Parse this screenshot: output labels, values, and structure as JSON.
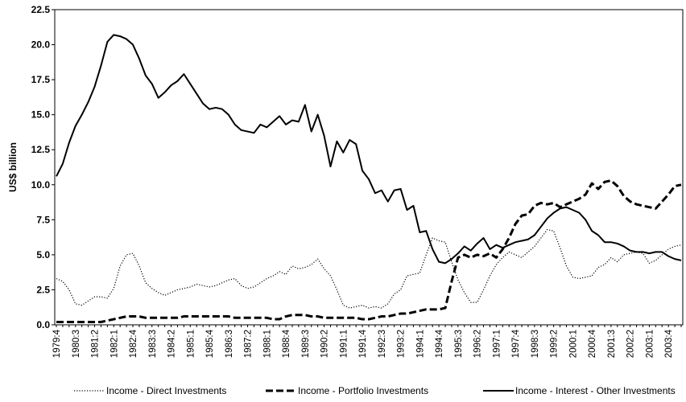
{
  "chart_data": {
    "type": "line",
    "y_label": "US$ billion",
    "categories": [
      "1979:4",
      null,
      null,
      "1980:3",
      null,
      null,
      "1981:2",
      null,
      null,
      "1982:1",
      null,
      null,
      "1982:4",
      null,
      null,
      "1983:3",
      null,
      null,
      "1984:2",
      null,
      null,
      "1985:1",
      null,
      null,
      "1985:4",
      null,
      null,
      "1986:3",
      null,
      null,
      "1987:2",
      null,
      null,
      "1988:1",
      null,
      null,
      "1988:4",
      null,
      null,
      "1989:3",
      null,
      null,
      "1990:2",
      null,
      null,
      "1991:1",
      null,
      null,
      "1991:4",
      null,
      null,
      "1992:3",
      null,
      null,
      "1993:2",
      null,
      null,
      "1994:1",
      null,
      null,
      "1994:4",
      null,
      null,
      "1995:3",
      null,
      null,
      "1996:2",
      null,
      null,
      "1997:1",
      null,
      null,
      "1997:4",
      null,
      null,
      "1998:3",
      null,
      null,
      "1999:2",
      null,
      null,
      "2000:1",
      null,
      null,
      "2000:4",
      null,
      null,
      "2001:3",
      null,
      null,
      "2002:2",
      null,
      null,
      "2003:1",
      null,
      null,
      "2003:4",
      null,
      null
    ],
    "series": [
      {
        "name": "Income - Direct Investments",
        "color": "#000000",
        "dash": "dotted",
        "values": [
          3.3,
          3.1,
          2.5,
          1.5,
          1.4,
          1.7,
          2.0,
          2.0,
          1.9,
          2.6,
          4.2,
          5.0,
          5.1,
          4.2,
          3.0,
          2.6,
          2.3,
          2.1,
          2.3,
          2.5,
          2.6,
          2.7,
          2.9,
          2.8,
          2.7,
          2.8,
          3.0,
          3.2,
          3.3,
          2.8,
          2.6,
          2.7,
          3.0,
          3.3,
          3.5,
          3.8,
          3.6,
          4.2,
          4.0,
          4.1,
          4.3,
          4.7,
          4.0,
          3.5,
          2.5,
          1.4,
          1.2,
          1.3,
          1.4,
          1.2,
          1.3,
          1.2,
          1.5,
          2.2,
          2.5,
          3.5,
          3.6,
          3.7,
          5.0,
          6.2,
          6.0,
          5.9,
          4.5,
          3.2,
          2.3,
          1.6,
          1.6,
          2.5,
          3.5,
          4.3,
          4.8,
          5.2,
          5.0,
          4.8,
          5.2,
          5.6,
          6.2,
          6.8,
          6.7,
          5.5,
          4.2,
          3.4,
          3.3,
          3.4,
          3.5,
          4.1,
          4.3,
          4.8,
          4.5,
          5.0,
          5.1,
          5.2,
          5.1,
          4.4,
          4.6,
          5.0,
          5.4,
          5.6,
          5.7
        ]
      },
      {
        "name": "Income - Portfolio Investments",
        "color": "#000000",
        "dash": "dashed",
        "values": [
          0.2,
          0.2,
          0.2,
          0.2,
          0.2,
          0.2,
          0.2,
          0.2,
          0.3,
          0.4,
          0.5,
          0.6,
          0.6,
          0.6,
          0.5,
          0.5,
          0.5,
          0.5,
          0.5,
          0.5,
          0.6,
          0.6,
          0.6,
          0.6,
          0.6,
          0.6,
          0.6,
          0.6,
          0.5,
          0.5,
          0.5,
          0.5,
          0.5,
          0.5,
          0.4,
          0.4,
          0.6,
          0.7,
          0.7,
          0.7,
          0.6,
          0.6,
          0.5,
          0.5,
          0.5,
          0.5,
          0.5,
          0.5,
          0.4,
          0.4,
          0.5,
          0.6,
          0.6,
          0.7,
          0.8,
          0.8,
          0.9,
          1.0,
          1.1,
          1.1,
          1.1,
          1.2,
          3.1,
          4.8,
          5.0,
          4.8,
          5.0,
          4.9,
          5.1,
          4.8,
          5.4,
          6.2,
          7.2,
          7.8,
          7.9,
          8.5,
          8.7,
          8.6,
          8.7,
          8.4,
          8.6,
          8.8,
          9.0,
          9.3,
          10.1,
          9.7,
          10.2,
          10.3,
          9.9,
          9.2,
          8.8,
          8.6,
          8.5,
          8.4,
          8.3,
          8.8,
          9.3,
          9.9,
          10.0
        ]
      },
      {
        "name": "Income - Interest - Other Investments",
        "color": "#000000",
        "dash": "solid",
        "values": [
          10.6,
          11.5,
          13.0,
          14.2,
          15.0,
          15.9,
          17.0,
          18.5,
          20.2,
          20.7,
          20.6,
          20.4,
          20.0,
          19.0,
          17.8,
          17.2,
          16.2,
          16.6,
          17.1,
          17.4,
          17.9,
          17.2,
          16.5,
          15.8,
          15.4,
          15.5,
          15.4,
          15.0,
          14.3,
          13.9,
          13.8,
          13.7,
          14.3,
          14.1,
          14.5,
          14.9,
          14.3,
          14.6,
          14.5,
          15.7,
          13.8,
          15.0,
          13.5,
          11.3,
          13.1,
          12.3,
          13.2,
          12.9,
          11.0,
          10.4,
          9.4,
          9.6,
          8.8,
          9.6,
          9.7,
          8.2,
          8.5,
          6.6,
          6.7,
          5.4,
          4.5,
          4.4,
          4.7,
          5.1,
          5.6,
          5.3,
          5.8,
          6.2,
          5.4,
          5.7,
          5.5,
          5.7,
          5.9,
          6.0,
          6.1,
          6.4,
          7.0,
          7.6,
          8.0,
          8.3,
          8.4,
          8.2,
          8.0,
          7.5,
          6.7,
          6.4,
          5.9,
          5.9,
          5.8,
          5.6,
          5.3,
          5.2,
          5.2,
          5.1,
          5.2,
          5.2,
          4.9,
          4.7,
          4.6
        ]
      }
    ],
    "ylim": [
      0,
      22.5
    ],
    "yticks": [
      {
        "value": 0,
        "label": "0.0"
      },
      2.5,
      {
        "value": 5,
        "label": "5.0"
      },
      7.5,
      {
        "value": 10,
        "label": "10.0"
      },
      12.5,
      {
        "value": 15,
        "label": "15.0"
      },
      17.5,
      {
        "value": 20,
        "label": "20.0"
      },
      22.5
    ],
    "grid": false
  }
}
